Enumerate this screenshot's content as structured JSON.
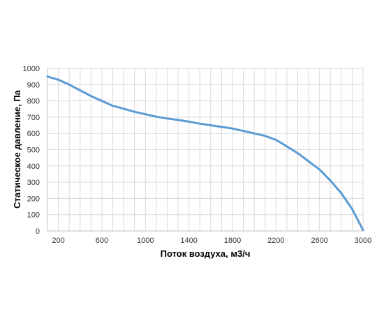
{
  "chart_data": {
    "type": "line",
    "title": "",
    "xlabel": "Поток воздуха, м3/ч",
    "ylabel": "Статическое давление, Па",
    "xlim": [
      100,
      3000
    ],
    "ylim": [
      0,
      1000
    ],
    "x_ticks": [
      200,
      600,
      1000,
      1400,
      1800,
      2200,
      2600,
      3000
    ],
    "y_ticks": [
      0,
      100,
      200,
      300,
      400,
      500,
      600,
      700,
      800,
      900,
      1000
    ],
    "x_grid_step": 100,
    "y_grid_step": 100,
    "grid": true,
    "legend": "none",
    "series": [
      {
        "color": "#5b9bd5",
        "x": [
          100,
          200,
          300,
          400,
          500,
          600,
          700,
          800,
          900,
          1000,
          1100,
          1200,
          1300,
          1400,
          1500,
          1600,
          1700,
          1800,
          1900,
          2000,
          2100,
          2200,
          2300,
          2400,
          2500,
          2600,
          2700,
          2800,
          2900,
          3000
        ],
        "y": [
          950,
          930,
          900,
          865,
          830,
          800,
          770,
          752,
          733,
          718,
          703,
          692,
          683,
          672,
          660,
          650,
          640,
          630,
          615,
          600,
          585,
          560,
          520,
          478,
          428,
          378,
          310,
          232,
          135,
          5
        ]
      }
    ],
    "colors": {
      "line": "#5b9bd5",
      "grid": "#d9d9d9",
      "axis": "#bfbfbf",
      "text": "#333333"
    }
  }
}
